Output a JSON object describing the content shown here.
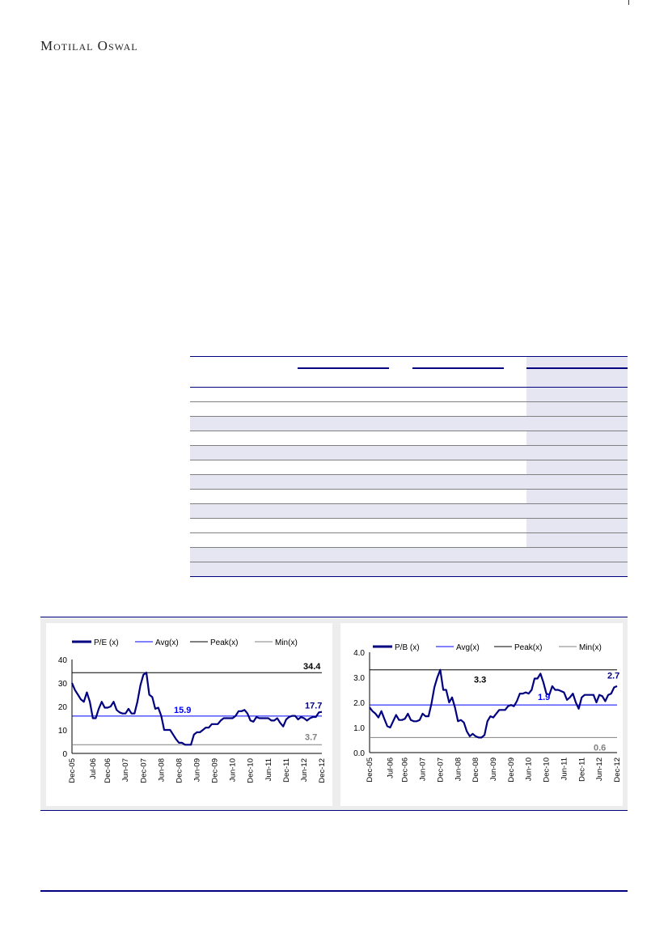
{
  "header": {
    "brand": "Motilal Oswal"
  },
  "colors": {
    "series": "#000080",
    "avg": "#0000ff",
    "peak": "#000000",
    "min": "#808080",
    "row_shade": "#e6e6f2",
    "rule": "#000080"
  },
  "chart_data": [
    {
      "type": "line",
      "title": "",
      "legend": [
        "P/E (x)",
        "Avg(x)",
        "Peak(x)",
        "Min(x)"
      ],
      "legend_position": "top",
      "x_tick_labels": [
        "Dec-05",
        "Jul-06",
        "Dec-06",
        "Jun-07",
        "Dec-07",
        "Jun-08",
        "Dec-08",
        "Jun-09",
        "Dec-09",
        "Jun-10",
        "Dec-10",
        "Jun-11",
        "Dec-11",
        "Jun-12",
        "Dec-12"
      ],
      "y_tick_labels": [
        "0",
        "10",
        "20",
        "30",
        "40"
      ],
      "ylim": [
        0,
        40
      ],
      "avg": 15.9,
      "peak": 34.4,
      "min": 3.7,
      "last": 17.7,
      "labels": {
        "avg": "15.9",
        "peak": "34.4",
        "min": "3.7",
        "last": "17.7"
      },
      "values": [
        30,
        27,
        25,
        23,
        22,
        26,
        22,
        15,
        15,
        19,
        22,
        19.5,
        19.5,
        20,
        22,
        18.5,
        17.5,
        17,
        17,
        19,
        17,
        17,
        22,
        29,
        33.5,
        34.4,
        25,
        24,
        19,
        19.5,
        16,
        10,
        10,
        10,
        8,
        6,
        4.5,
        4.5,
        3.7,
        3.7,
        3.7,
        8,
        9,
        9,
        10,
        11,
        11,
        12.5,
        12.5,
        12.5,
        14,
        15,
        15,
        15,
        15,
        16,
        18,
        18,
        18.5,
        17,
        14,
        13.5,
        15.5,
        15,
        15,
        15,
        15,
        14,
        14,
        15,
        13,
        11.5,
        14.5,
        15.5,
        16,
        16,
        14.5,
        15.5,
        15,
        14,
        15,
        15.5,
        15.5,
        17.5,
        17.7
      ]
    },
    {
      "type": "line",
      "title": "",
      "legend": [
        "P/B (x)",
        "Avg(x)",
        "Peak(x)",
        "Min(x)"
      ],
      "legend_position": "top",
      "x_tick_labels": [
        "Dec-05",
        "Jul-06",
        "Dec-06",
        "Jun-07",
        "Dec-07",
        "Jun-08",
        "Dec-08",
        "Jun-09",
        "Dec-09",
        "Jun-10",
        "Dec-10",
        "Jun-11",
        "Dec-11",
        "Jun-12",
        "Dec-12"
      ],
      "y_tick_labels": [
        "0.0",
        "1.0",
        "2.0",
        "3.0",
        "4.0"
      ],
      "ylim": [
        0,
        4
      ],
      "avg": 1.9,
      "peak": 3.3,
      "min": 0.6,
      "last": 2.7,
      "labels": {
        "avg": "1.9",
        "peak": "3.3",
        "min": "0.6",
        "last": "2.7"
      },
      "values": [
        1.8,
        1.65,
        1.55,
        1.4,
        1.65,
        1.35,
        1.05,
        1.0,
        1.25,
        1.5,
        1.3,
        1.3,
        1.35,
        1.55,
        1.3,
        1.25,
        1.25,
        1.3,
        1.55,
        1.45,
        1.45,
        1.95,
        2.6,
        3.0,
        3.3,
        2.5,
        2.5,
        2.0,
        2.2,
        1.8,
        1.25,
        1.3,
        1.2,
        0.85,
        0.65,
        0.75,
        0.65,
        0.6,
        0.6,
        0.7,
        1.25,
        1.45,
        1.4,
        1.55,
        1.7,
        1.7,
        1.7,
        1.85,
        1.9,
        1.85,
        2.05,
        2.35,
        2.35,
        2.4,
        2.35,
        2.5,
        2.95,
        2.95,
        3.15,
        2.8,
        2.35,
        2.3,
        2.65,
        2.5,
        2.5,
        2.45,
        2.4,
        2.1,
        2.2,
        2.35,
        2.0,
        1.75,
        2.2,
        2.3,
        2.3,
        2.3,
        2.3,
        2.0,
        2.3,
        2.25,
        2.05,
        2.3,
        2.35,
        2.6,
        2.65
      ]
    }
  ]
}
